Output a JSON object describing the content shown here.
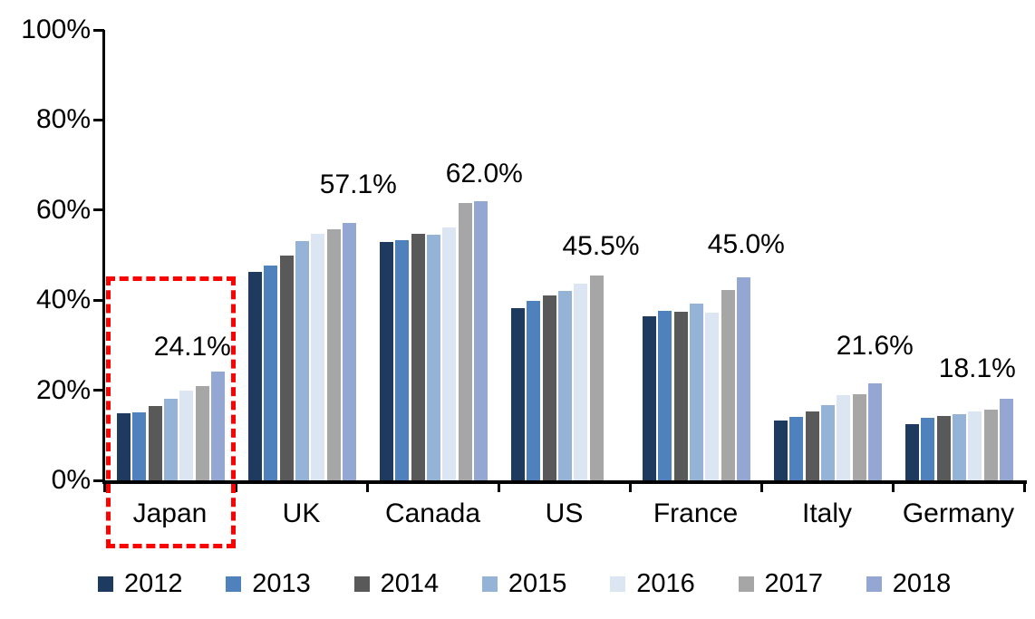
{
  "chart_data": {
    "type": "bar",
    "title": "",
    "xlabel": "",
    "ylabel": "",
    "categories": [
      "Japan",
      "UK",
      "Canada",
      "US",
      "France",
      "Italy",
      "Germany"
    ],
    "series": [
      {
        "name": "2012",
        "color": "#1E3A5F",
        "values": [
          14.8,
          46.2,
          52.9,
          38.2,
          36.5,
          13.3,
          12.5
        ]
      },
      {
        "name": "2013",
        "color": "#4F81BD",
        "values": [
          15.0,
          47.6,
          53.3,
          39.9,
          37.7,
          14.1,
          13.9
        ]
      },
      {
        "name": "2014",
        "color": "#595959",
        "values": [
          16.5,
          49.8,
          54.8,
          41.0,
          37.5,
          15.2,
          14.3
        ]
      },
      {
        "name": "2015",
        "color": "#95B3D7",
        "values": [
          18.1,
          53.1,
          54.5,
          42.1,
          39.2,
          16.7,
          14.6
        ]
      },
      {
        "name": "2016",
        "color": "#DCE6F2",
        "values": [
          19.9,
          54.7,
          56.1,
          43.6,
          37.2,
          18.9,
          15.2
        ]
      },
      {
        "name": "2017",
        "color": "#A6A6A6",
        "values": [
          21.0,
          55.7,
          61.5,
          45.5,
          42.3,
          19.1,
          15.7
        ]
      },
      {
        "name": "2018",
        "color": "#93A7D2",
        "values": [
          24.1,
          57.1,
          62.0,
          null,
          45.0,
          21.6,
          18.1
        ]
      }
    ],
    "data_labels": [
      "24.1%",
      "57.1%",
      "62.0%",
      "45.5%",
      "45.0%",
      "21.6%",
      "18.1%"
    ],
    "y_axis": {
      "tick_labels": [
        "0%",
        "20%",
        "40%",
        "60%",
        "80%",
        "100%"
      ],
      "min": 0,
      "max": 100,
      "step": 20,
      "grid": false
    },
    "legend": {
      "position": "bottom",
      "entries": [
        "2012",
        "2013",
        "2014",
        "2015",
        "2016",
        "2017",
        "2018"
      ]
    },
    "annotations": {
      "highlight_category": "Japan",
      "highlight_style": "red-dashed-rectangle",
      "highlight_color": "#FF0000"
    }
  }
}
